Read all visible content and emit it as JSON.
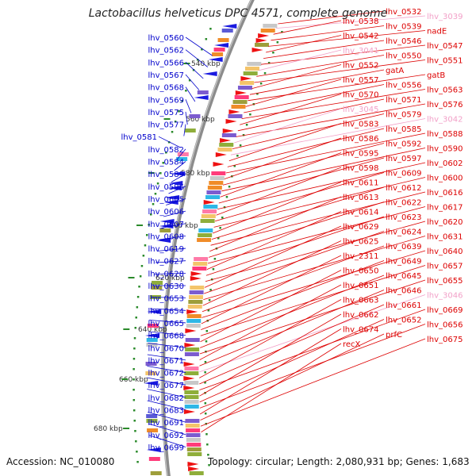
{
  "title": "Lactobacillus helveticus DPC 4571, complete genome",
  "footer": {
    "accession": "Accession: NC_010080",
    "topology": "Topology: circular; Length: 2,080,931 bp; Genes: 1,683"
  },
  "colors": {
    "left_gene": "#0000cc",
    "right_gene": "#dd0000",
    "pseudo": "#f2a0c8",
    "backbone": "#8c8c8c",
    "tick": "#2a8a2a"
  },
  "kbp_labels": [
    "540 kbp",
    "560 kbp",
    "580 kbp",
    "600 kbp",
    "620 kbp",
    "640 kbp",
    "660 kbp",
    "680 kbp"
  ],
  "left_genes": [
    "lhv_0560",
    "lhv_0562",
    "lhv_0566",
    "lhv_0567",
    "lhv_0568",
    "lhv_0569",
    "lhv_0575",
    "lhv_0577",
    "lhv_0581",
    "lhv_0582",
    "lhv_0584",
    "lhv_0589",
    "lhv_0596",
    "lhv_0605",
    "lhv_0606",
    "lhv_0607",
    "lhv_0608",
    "lhv_0619",
    "lhv_0627",
    "lhv_0628",
    "lhv_0630",
    "lhv_0653",
    "lhv_0654",
    "lhv_0665",
    "lhv_0668",
    "lhv_0670",
    "lhv_0671",
    "lhv_0672",
    "lhv_0677",
    "lhv_0682",
    "lhv_0683",
    "lhv_0691",
    "lhv_0692",
    "lhv_0699"
  ],
  "right_genes": [
    {
      "name": "lhv_0532",
      "pseudo": false
    },
    {
      "name": "lhv_3039",
      "pseudo": true
    },
    {
      "name": "lhv_0538",
      "pseudo": false
    },
    {
      "name": "lhv_0539",
      "pseudo": false
    },
    {
      "name": "nadE",
      "pseudo": false
    },
    {
      "name": "lhv_0542",
      "pseudo": false
    },
    {
      "name": "lhv_0546",
      "pseudo": false
    },
    {
      "name": "lhv_0547",
      "pseudo": false
    },
    {
      "name": "lhv_3041",
      "pseudo": true
    },
    {
      "name": "lhv_0550",
      "pseudo": false
    },
    {
      "name": "lhv_0551",
      "pseudo": false
    },
    {
      "name": "lhv_0552",
      "pseudo": false
    },
    {
      "name": "gatA",
      "pseudo": false
    },
    {
      "name": "gatB",
      "pseudo": false
    },
    {
      "name": "lhv_0557",
      "pseudo": false
    },
    {
      "name": "lhv_0556",
      "pseudo": false
    },
    {
      "name": "lhv_0563",
      "pseudo": false
    },
    {
      "name": "lhv_0570",
      "pseudo": false
    },
    {
      "name": "lhv_0571",
      "pseudo": false
    },
    {
      "name": "lhv_0576",
      "pseudo": false
    },
    {
      "name": "lhv_3045",
      "pseudo": true
    },
    {
      "name": "lhv_0579",
      "pseudo": false
    },
    {
      "name": "lhv_3042",
      "pseudo": true
    },
    {
      "name": "lhv_0583",
      "pseudo": false
    },
    {
      "name": "lhv_0585",
      "pseudo": false
    },
    {
      "name": "lhv_0588",
      "pseudo": false
    },
    {
      "name": "lhv_0586",
      "pseudo": false
    },
    {
      "name": "lhv_0592",
      "pseudo": false
    },
    {
      "name": "lhv_0590",
      "pseudo": false
    },
    {
      "name": "lhv_0595",
      "pseudo": false
    },
    {
      "name": "lhv_0597",
      "pseudo": false
    },
    {
      "name": "lhv_0602",
      "pseudo": false
    },
    {
      "name": "lhv_0598",
      "pseudo": false
    },
    {
      "name": "lhv_0609",
      "pseudo": false
    },
    {
      "name": "lhv_0600",
      "pseudo": false
    },
    {
      "name": "lhv_0611",
      "pseudo": false
    },
    {
      "name": "lhv_0612",
      "pseudo": false
    },
    {
      "name": "lhv_0616",
      "pseudo": false
    },
    {
      "name": "lhv_0613",
      "pseudo": false
    },
    {
      "name": "lhv_0622",
      "pseudo": false
    },
    {
      "name": "lhv_0617",
      "pseudo": false
    },
    {
      "name": "lhv_0614",
      "pseudo": false
    },
    {
      "name": "lhv_0623",
      "pseudo": false
    },
    {
      "name": "lhv_0620",
      "pseudo": false
    },
    {
      "name": "lhv_0629",
      "pseudo": false
    },
    {
      "name": "lhv_0624",
      "pseudo": false
    },
    {
      "name": "lhv_0631",
      "pseudo": false
    },
    {
      "name": "lhv_0625",
      "pseudo": false
    },
    {
      "name": "lhv_0639",
      "pseudo": false
    },
    {
      "name": "lhv_0640",
      "pseudo": false
    },
    {
      "name": "lhv_2311",
      "pseudo": false
    },
    {
      "name": "lhv_0649",
      "pseudo": false
    },
    {
      "name": "lhv_0657",
      "pseudo": false
    },
    {
      "name": "lhv_0650",
      "pseudo": false
    },
    {
      "name": "lhv_0645",
      "pseudo": false
    },
    {
      "name": "lhv_0655",
      "pseudo": false
    },
    {
      "name": "lhv_0651",
      "pseudo": false
    },
    {
      "name": "lhv_0646",
      "pseudo": false
    },
    {
      "name": "lhv_3046",
      "pseudo": true
    },
    {
      "name": "lhv_0663",
      "pseudo": false
    },
    {
      "name": "lhv_0661",
      "pseudo": false
    },
    {
      "name": "lhv_0669",
      "pseudo": false
    },
    {
      "name": "lhv_0662",
      "pseudo": false
    },
    {
      "name": "lhv_0652",
      "pseudo": false
    },
    {
      "name": "lhv_0656",
      "pseudo": false
    },
    {
      "name": "lhv_0674",
      "pseudo": false
    },
    {
      "name": "prfC",
      "pseudo": false
    },
    {
      "name": "lhv_0675",
      "pseudo": false
    },
    {
      "name": "recX",
      "pseudo": false
    }
  ]
}
